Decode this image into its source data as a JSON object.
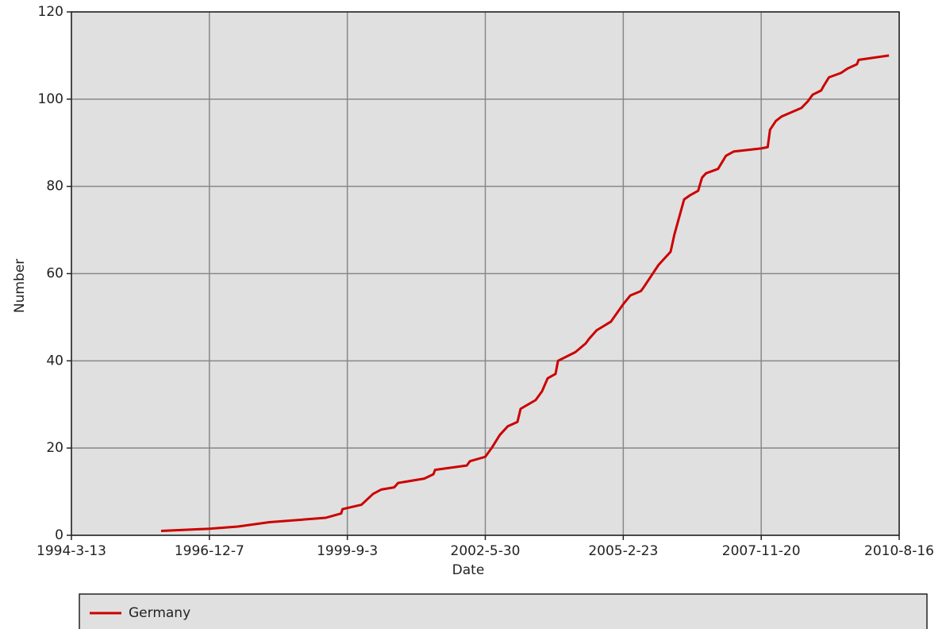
{
  "chart_data": {
    "type": "line",
    "xlabel": "Date",
    "ylabel": "Number",
    "x": [
      "1995-12-23",
      "1996-12-7",
      "1997-7-2",
      "1998-2-15",
      "1999-3-28",
      "1999-7-20",
      "1999-7-30",
      "1999-12-14",
      "2000-3-8",
      "2000-5-7",
      "2000-8-8",
      "2000-9-5",
      "2001-3-14",
      "2001-5-19",
      "2001-5-31",
      "2002-1-16",
      "2002-2-8",
      "2002-5-30",
      "2002-7-15",
      "2002-9-12",
      "2002-11-9",
      "2003-1-18",
      "2003-2-10",
      "2003-5-30",
      "2003-7-15",
      "2003-8-25",
      "2003-10-21",
      "2003-11-8",
      "2004-3-13",
      "2004-5-27",
      "2004-6-19",
      "2004-8-14",
      "2004-11-26",
      "2005-2-23",
      "2005-4-16",
      "2005-7-1",
      "2005-7-24",
      "2005-11-6",
      "2006-2-1",
      "2006-3-1",
      "2006-5-10",
      "2006-6-24",
      "2006-8-20",
      "2006-9-17",
      "2006-10-16",
      "2007-1-11",
      "2007-3-9",
      "2007-5-6",
      "2007-11-20",
      "2008-1-6",
      "2008-1-23",
      "2008-3-5",
      "2008-4-15",
      "2008-9-7",
      "2008-10-23",
      "2008-11-26",
      "2009-1-28",
      "2009-2-14",
      "2009-3-25",
      "2009-6-20",
      "2009-8-6",
      "2009-10-14",
      "2009-10-26",
      "2010-6-3"
    ],
    "series": [
      {
        "name": "Germany",
        "color": "#cc0000",
        "values": [
          1,
          1.5,
          2,
          3,
          4,
          5,
          6,
          7,
          9.5,
          10.5,
          11,
          12,
          13,
          14,
          15,
          16,
          17,
          18,
          20,
          23,
          25,
          26,
          29,
          31,
          33,
          36,
          37,
          40,
          42,
          44,
          45,
          47,
          49,
          53,
          55,
          56,
          57,
          62,
          65,
          69,
          77,
          78,
          79,
          82,
          83,
          84,
          87,
          88,
          88.7,
          89,
          93,
          95,
          96,
          98,
          99.5,
          101,
          102,
          103,
          105,
          106,
          107,
          108,
          109,
          110
        ]
      }
    ],
    "xlim": [
      "1994-3-13",
      "2010-8-16"
    ],
    "xticks": [
      "1994-3-13",
      "1996-12-7",
      "1999-9-3",
      "2002-5-30",
      "2005-2-23",
      "2007-11-20",
      "2010-8-16"
    ],
    "ylim": [
      0,
      120
    ],
    "yticks": [
      0,
      20,
      40,
      60,
      80,
      100,
      120
    ],
    "grid": true,
    "legend": "bottom"
  }
}
